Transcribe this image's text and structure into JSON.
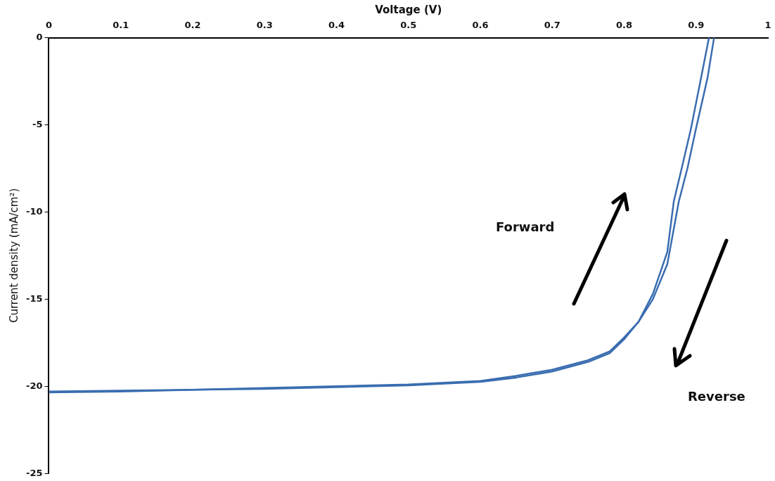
{
  "chart_data": {
    "type": "line",
    "xlabel": "Voltage (V)",
    "ylabel": "Current density (mA/cm²)",
    "xlim": [
      0,
      1
    ],
    "xticks": [
      0,
      0.1,
      0.2,
      0.3,
      0.4,
      0.5,
      0.6,
      0.7,
      0.8,
      0.9,
      1
    ],
    "ylim": [
      -25,
      0
    ],
    "yticks": [
      0,
      -5,
      -10,
      -15,
      -20,
      -25
    ],
    "grid": false,
    "legend": false,
    "marker": "none",
    "line_style": "solid",
    "annotations": [
      "Forward",
      "Reverse"
    ],
    "series": [
      {
        "color": "#3a6db0",
        "x": [
          0,
          0.1,
          0.2,
          0.3,
          0.4,
          0.5,
          0.55,
          0.6,
          0.65,
          0.7,
          0.75,
          0.78,
          0.8,
          0.82,
          0.84,
          0.86,
          0.869,
          0.88,
          0.893,
          0.907,
          0.918
        ],
        "values": [
          -20.35,
          -20.3,
          -20.2,
          -20.15,
          -20.05,
          -19.95,
          -19.85,
          -19.75,
          -19.5,
          -19.15,
          -18.6,
          -18.1,
          -17.3,
          -16.3,
          -14.7,
          -12.3,
          -9.4,
          -7.5,
          -5.2,
          -2.3,
          0
        ]
      },
      {
        "color": "#3a6db0",
        "x": [
          0,
          0.1,
          0.2,
          0.3,
          0.4,
          0.5,
          0.55,
          0.6,
          0.65,
          0.7,
          0.75,
          0.78,
          0.8,
          0.82,
          0.84,
          0.86,
          0.876,
          0.888,
          0.9,
          0.916,
          0.925
        ],
        "values": [
          -20.3,
          -20.25,
          -20.2,
          -20.1,
          -20,
          -19.9,
          -19.8,
          -19.7,
          -19.4,
          -19.05,
          -18.5,
          -18,
          -17.2,
          -16.3,
          -15,
          -13,
          -9.4,
          -7.5,
          -5.2,
          -2.3,
          0
        ]
      }
    ]
  }
}
